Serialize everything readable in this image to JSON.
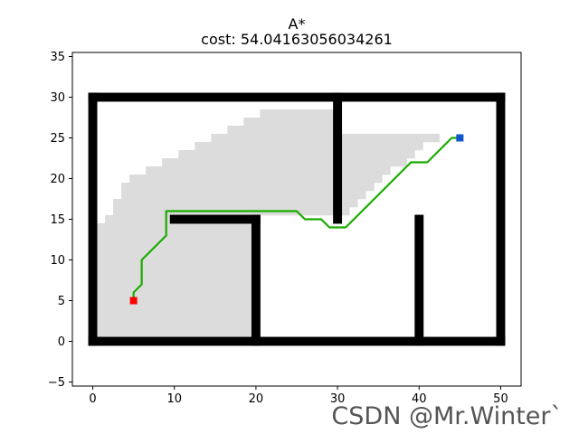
{
  "chart_data": {
    "type": "scatter",
    "title": "A*",
    "subtitle": "cost: 54.04163056034261",
    "xlabel": "",
    "ylabel": "",
    "xlim": [
      -2.5,
      52.5
    ],
    "ylim": [
      -5.5,
      35.5
    ],
    "x_ticks": [
      "0",
      "10",
      "20",
      "30",
      "40",
      "50"
    ],
    "y_ticks": [
      "−5",
      "0",
      "5",
      "10",
      "15",
      "20",
      "25",
      "30",
      "35"
    ],
    "grid": false,
    "start": {
      "x": 5,
      "y": 5,
      "color": "#ff0000"
    },
    "goal": {
      "x": 45,
      "y": 25,
      "color": "#1155cc"
    },
    "obstacles": {
      "color": "#000000",
      "walls": [
        {
          "x1": 0,
          "y1": 0,
          "x2": 50,
          "y2": 0
        },
        {
          "x1": 0,
          "y1": 30,
          "x2": 50,
          "y2": 30
        },
        {
          "x1": 0,
          "y1": 0,
          "x2": 0,
          "y2": 30
        },
        {
          "x1": 50,
          "y1": 0,
          "x2": 50,
          "y2": 30
        },
        {
          "x1": 10,
          "y1": 15,
          "x2": 20,
          "y2": 15
        },
        {
          "x1": 20,
          "y1": 0,
          "x2": 20,
          "y2": 15
        },
        {
          "x1": 30,
          "y1": 15,
          "x2": 30,
          "y2": 30
        },
        {
          "x1": 40,
          "y1": 0,
          "x2": 40,
          "y2": 15
        }
      ]
    },
    "explored": {
      "color": "#dcdcdc",
      "rows": [
        [
          1,
          1,
          19
        ],
        [
          2,
          1,
          19
        ],
        [
          3,
          1,
          19
        ],
        [
          4,
          1,
          19
        ],
        [
          5,
          1,
          19
        ],
        [
          6,
          1,
          19
        ],
        [
          7,
          1,
          19
        ],
        [
          8,
          1,
          19
        ],
        [
          9,
          1,
          19
        ],
        [
          10,
          1,
          19
        ],
        [
          11,
          1,
          19
        ],
        [
          12,
          1,
          19
        ],
        [
          13,
          1,
          19
        ],
        [
          14,
          1,
          19
        ],
        [
          15,
          2,
          9
        ],
        [
          16,
          3,
          31
        ],
        [
          17,
          3,
          32
        ],
        [
          18,
          4,
          33
        ],
        [
          19,
          4,
          34
        ],
        [
          20,
          5,
          35
        ],
        [
          21,
          7,
          36
        ],
        [
          22,
          9,
          38
        ],
        [
          23,
          11,
          39
        ],
        [
          24,
          13,
          40
        ],
        [
          25,
          15,
          42
        ],
        [
          26,
          17,
          29
        ],
        [
          27,
          19,
          29
        ],
        [
          28,
          21,
          29
        ]
      ]
    },
    "path": {
      "color": "#1aab00",
      "x": [
        5,
        5,
        6,
        6,
        9,
        9,
        25,
        26,
        28,
        29,
        31,
        32,
        33,
        34,
        35,
        36,
        37,
        38,
        39,
        41,
        42,
        43,
        44,
        45
      ],
      "y": [
        5,
        6,
        7,
        10,
        13,
        16,
        16,
        15,
        15,
        14,
        14,
        15,
        16,
        17,
        18,
        19,
        20,
        21,
        22,
        22,
        23,
        24,
        25,
        25
      ]
    }
  },
  "watermark": "CSDN @Mr.Winter`"
}
